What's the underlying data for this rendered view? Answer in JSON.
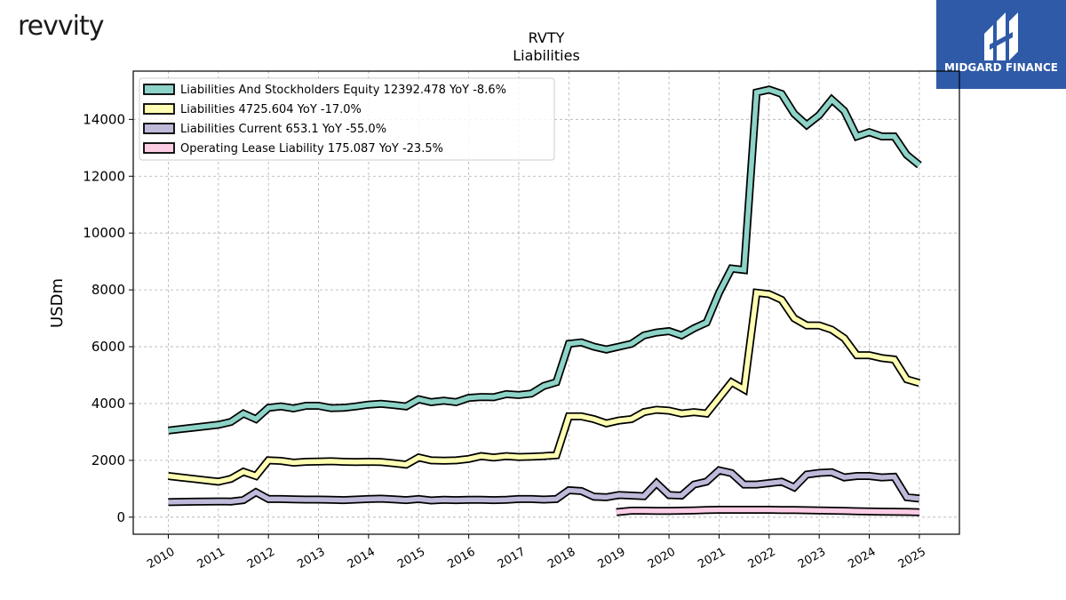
{
  "header": {
    "left_logo_text": "revvity",
    "right_logo_text": "MIDGARD FINANCE"
  },
  "chart_data": {
    "type": "line",
    "title": "RVTY",
    "subtitle": "Liabilities",
    "xlabel": "",
    "ylabel": "USDm",
    "xlim": [
      2009.3,
      2025.8
    ],
    "ylim": [
      -600,
      15700
    ],
    "grid": true,
    "legend_position": "top-left",
    "x_ticks": [
      "2010",
      "2011",
      "2012",
      "2013",
      "2014",
      "2015",
      "2016",
      "2017",
      "2018",
      "2019",
      "2020",
      "2021",
      "2022",
      "2023",
      "2024",
      "2025"
    ],
    "y_ticks": [
      0,
      2000,
      4000,
      6000,
      8000,
      10000,
      12000,
      14000
    ],
    "series": [
      {
        "name": "Liabilities And Stockholders Equity",
        "legend": "Liabilities And Stockholders Equity  12392.478 YoY -8.6%",
        "color": "#8dd3c7",
        "points": [
          [
            2010.0,
            3050
          ],
          [
            2010.25,
            3100
          ],
          [
            2010.5,
            3150
          ],
          [
            2010.75,
            3200
          ],
          [
            2011.0,
            3250
          ],
          [
            2011.25,
            3350
          ],
          [
            2011.5,
            3650
          ],
          [
            2011.75,
            3450
          ],
          [
            2012.0,
            3850
          ],
          [
            2012.25,
            3900
          ],
          [
            2012.5,
            3830
          ],
          [
            2012.75,
            3920
          ],
          [
            2013.0,
            3920
          ],
          [
            2013.25,
            3840
          ],
          [
            2013.5,
            3850
          ],
          [
            2013.75,
            3900
          ],
          [
            2014.0,
            3960
          ],
          [
            2014.25,
            3990
          ],
          [
            2014.5,
            3950
          ],
          [
            2014.75,
            3900
          ],
          [
            2015.0,
            4150
          ],
          [
            2015.25,
            4050
          ],
          [
            2015.5,
            4100
          ],
          [
            2015.75,
            4050
          ],
          [
            2016.0,
            4200
          ],
          [
            2016.25,
            4230
          ],
          [
            2016.5,
            4220
          ],
          [
            2016.75,
            4330
          ],
          [
            2017.0,
            4300
          ],
          [
            2017.25,
            4350
          ],
          [
            2017.5,
            4620
          ],
          [
            2017.75,
            4750
          ],
          [
            2018.0,
            6100
          ],
          [
            2018.25,
            6150
          ],
          [
            2018.5,
            6000
          ],
          [
            2018.75,
            5900
          ],
          [
            2019.0,
            6000
          ],
          [
            2019.25,
            6100
          ],
          [
            2019.5,
            6400
          ],
          [
            2019.75,
            6500
          ],
          [
            2020.0,
            6550
          ],
          [
            2020.25,
            6400
          ],
          [
            2020.5,
            6650
          ],
          [
            2020.75,
            6850
          ],
          [
            2021.0,
            7900
          ],
          [
            2021.25,
            8750
          ],
          [
            2021.5,
            8700
          ],
          [
            2021.75,
            14950
          ],
          [
            2022.0,
            15050
          ],
          [
            2022.25,
            14900
          ],
          [
            2022.5,
            14200
          ],
          [
            2022.75,
            13800
          ],
          [
            2023.0,
            14150
          ],
          [
            2023.25,
            14700
          ],
          [
            2023.5,
            14300
          ],
          [
            2023.75,
            13400
          ],
          [
            2024.0,
            13550
          ],
          [
            2024.25,
            13400
          ],
          [
            2024.5,
            13400
          ],
          [
            2024.75,
            12750
          ],
          [
            2025.0,
            12392.478
          ]
        ]
      },
      {
        "name": "Liabilities",
        "legend": "Liabilities  4725.604 YoY -17.0%",
        "color": "#ffffb3",
        "points": [
          [
            2010.0,
            1450
          ],
          [
            2010.25,
            1400
          ],
          [
            2010.5,
            1350
          ],
          [
            2010.75,
            1300
          ],
          [
            2011.0,
            1250
          ],
          [
            2011.25,
            1350
          ],
          [
            2011.5,
            1600
          ],
          [
            2011.75,
            1450
          ],
          [
            2012.0,
            2000
          ],
          [
            2012.25,
            1980
          ],
          [
            2012.5,
            1920
          ],
          [
            2012.75,
            1950
          ],
          [
            2013.0,
            1960
          ],
          [
            2013.25,
            1970
          ],
          [
            2013.5,
            1950
          ],
          [
            2013.75,
            1940
          ],
          [
            2014.0,
            1950
          ],
          [
            2014.25,
            1940
          ],
          [
            2014.5,
            1900
          ],
          [
            2014.75,
            1850
          ],
          [
            2015.0,
            2100
          ],
          [
            2015.25,
            2000
          ],
          [
            2015.5,
            1990
          ],
          [
            2015.75,
            2000
          ],
          [
            2016.0,
            2050
          ],
          [
            2016.25,
            2150
          ],
          [
            2016.5,
            2100
          ],
          [
            2016.75,
            2150
          ],
          [
            2017.0,
            2120
          ],
          [
            2017.25,
            2130
          ],
          [
            2017.5,
            2150
          ],
          [
            2017.75,
            2180
          ],
          [
            2018.0,
            3550
          ],
          [
            2018.25,
            3550
          ],
          [
            2018.5,
            3450
          ],
          [
            2018.75,
            3300
          ],
          [
            2019.0,
            3400
          ],
          [
            2019.25,
            3450
          ],
          [
            2019.5,
            3700
          ],
          [
            2019.75,
            3780
          ],
          [
            2020.0,
            3750
          ],
          [
            2020.25,
            3650
          ],
          [
            2020.5,
            3700
          ],
          [
            2020.75,
            3650
          ],
          [
            2021.0,
            4200
          ],
          [
            2021.25,
            4750
          ],
          [
            2021.5,
            4500
          ],
          [
            2021.75,
            7900
          ],
          [
            2022.0,
            7850
          ],
          [
            2022.25,
            7650
          ],
          [
            2022.5,
            7000
          ],
          [
            2022.75,
            6750
          ],
          [
            2023.0,
            6750
          ],
          [
            2023.25,
            6600
          ],
          [
            2023.5,
            6300
          ],
          [
            2023.75,
            5700
          ],
          [
            2024.0,
            5700
          ],
          [
            2024.25,
            5600
          ],
          [
            2024.5,
            5550
          ],
          [
            2024.75,
            4850
          ],
          [
            2025.0,
            4725.604
          ]
        ]
      },
      {
        "name": "Liabilities Current",
        "legend": "Liabilities Current  653.1 YoY -55.0%",
        "color": "#bebada",
        "points": [
          [
            2010.0,
            530
          ],
          [
            2010.25,
            540
          ],
          [
            2010.5,
            545
          ],
          [
            2010.75,
            550
          ],
          [
            2011.0,
            555
          ],
          [
            2011.25,
            550
          ],
          [
            2011.5,
            600
          ],
          [
            2011.75,
            880
          ],
          [
            2012.0,
            640
          ],
          [
            2012.25,
            640
          ],
          [
            2012.5,
            630
          ],
          [
            2012.75,
            620
          ],
          [
            2013.0,
            620
          ],
          [
            2013.25,
            615
          ],
          [
            2013.5,
            600
          ],
          [
            2013.75,
            620
          ],
          [
            2014.0,
            640
          ],
          [
            2014.25,
            650
          ],
          [
            2014.5,
            630
          ],
          [
            2014.75,
            600
          ],
          [
            2015.0,
            640
          ],
          [
            2015.25,
            590
          ],
          [
            2015.5,
            610
          ],
          [
            2015.75,
            600
          ],
          [
            2016.0,
            610
          ],
          [
            2016.25,
            610
          ],
          [
            2016.5,
            600
          ],
          [
            2016.75,
            610
          ],
          [
            2017.0,
            640
          ],
          [
            2017.25,
            640
          ],
          [
            2017.5,
            620
          ],
          [
            2017.75,
            640
          ],
          [
            2018.0,
            950
          ],
          [
            2018.25,
            920
          ],
          [
            2018.5,
            720
          ],
          [
            2018.75,
            700
          ],
          [
            2019.0,
            780
          ],
          [
            2019.25,
            760
          ],
          [
            2019.5,
            740
          ],
          [
            2019.75,
            1200
          ],
          [
            2020.0,
            780
          ],
          [
            2020.25,
            760
          ],
          [
            2020.5,
            1150
          ],
          [
            2020.75,
            1250
          ],
          [
            2021.0,
            1650
          ],
          [
            2021.25,
            1550
          ],
          [
            2021.5,
            1150
          ],
          [
            2021.75,
            1150
          ],
          [
            2022.0,
            1200
          ],
          [
            2022.25,
            1250
          ],
          [
            2022.5,
            1050
          ],
          [
            2022.75,
            1500
          ],
          [
            2023.0,
            1560
          ],
          [
            2023.25,
            1580
          ],
          [
            2023.5,
            1400
          ],
          [
            2023.75,
            1450
          ],
          [
            2024.0,
            1450
          ],
          [
            2024.25,
            1400
          ],
          [
            2024.5,
            1420
          ],
          [
            2024.75,
            700
          ],
          [
            2025.0,
            653.1
          ]
        ]
      },
      {
        "name": "Operating Lease Liability",
        "legend": "Operating Lease Liability  175.087 YoY -23.5%",
        "color": "#fccde5",
        "points": [
          [
            2018.95,
            180
          ],
          [
            2019.25,
            230
          ],
          [
            2019.5,
            230
          ],
          [
            2019.75,
            220
          ],
          [
            2020.0,
            220
          ],
          [
            2020.25,
            230
          ],
          [
            2020.5,
            240
          ],
          [
            2020.75,
            250
          ],
          [
            2021.0,
            260
          ],
          [
            2021.25,
            260
          ],
          [
            2021.5,
            260
          ],
          [
            2021.75,
            260
          ],
          [
            2022.0,
            260
          ],
          [
            2022.25,
            255
          ],
          [
            2022.5,
            250
          ],
          [
            2022.75,
            245
          ],
          [
            2023.0,
            240
          ],
          [
            2023.25,
            230
          ],
          [
            2023.5,
            220
          ],
          [
            2023.75,
            210
          ],
          [
            2024.0,
            200
          ],
          [
            2024.25,
            195
          ],
          [
            2024.5,
            190
          ],
          [
            2024.75,
            185
          ],
          [
            2025.0,
            175.087
          ]
        ]
      }
    ]
  }
}
